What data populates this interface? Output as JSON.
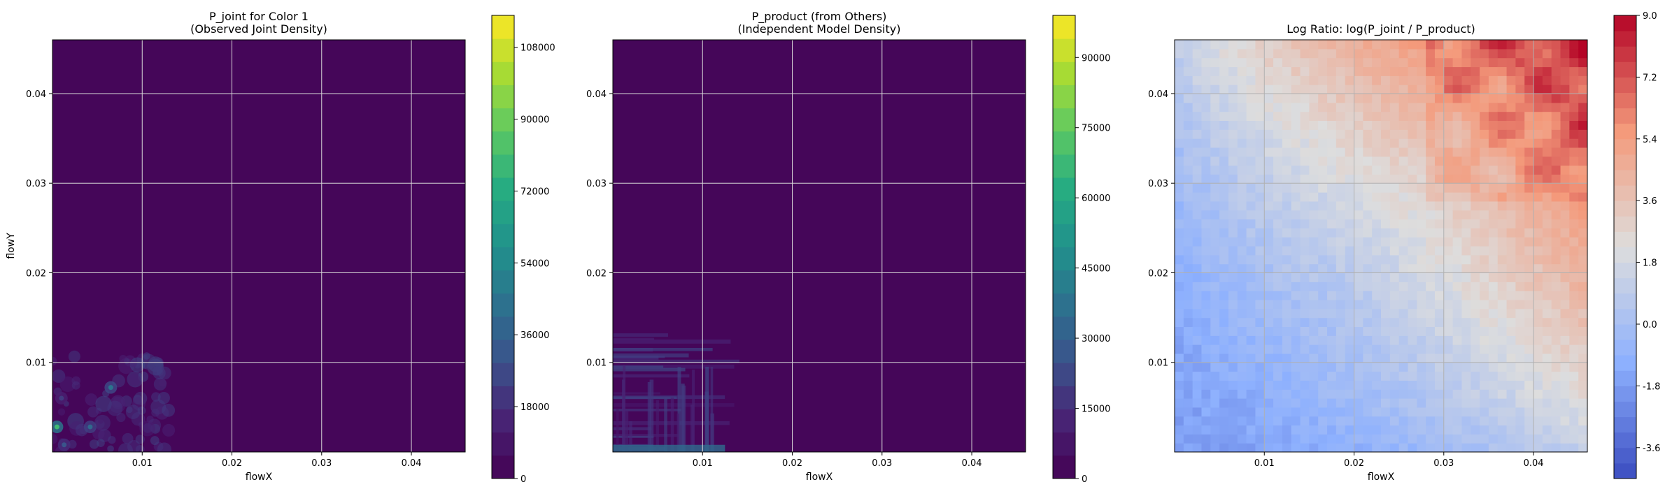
{
  "chart_data": [
    {
      "type": "heatmap",
      "title": "P_joint for Color 1\n(Observed Joint Density)",
      "xlabel": "flowX",
      "ylabel": "flowY",
      "xlim": [
        0.0,
        0.046
      ],
      "ylim": [
        0.0,
        0.046
      ],
      "x_ticks": [
        0.01,
        0.02,
        0.03,
        0.04
      ],
      "y_ticks": [
        0.01,
        0.02,
        0.03,
        0.04
      ],
      "grid": true,
      "colormap": "viridis",
      "colorbar": {
        "range": [
          0,
          116000
        ],
        "ticks": [
          0,
          18000,
          36000,
          54000,
          72000,
          90000,
          108000
        ]
      },
      "highlights": [
        {
          "x": 0.0005,
          "y": 0.0028,
          "value": 80000
        },
        {
          "x": 0.0065,
          "y": 0.0072,
          "value": 45000
        },
        {
          "x": 0.0042,
          "y": 0.0028,
          "value": 40000
        },
        {
          "x": 0.0013,
          "y": 0.0008,
          "value": 30000
        },
        {
          "x": 0.001,
          "y": 0.006,
          "value": 22000
        }
      ]
    },
    {
      "type": "heatmap",
      "title": "P_product (from Others)\n(Independent Model Density)",
      "xlabel": "flowX",
      "ylabel": "",
      "xlim": [
        0.0,
        0.046
      ],
      "ylim": [
        0.0,
        0.046
      ],
      "x_ticks": [
        0.01,
        0.02,
        0.03,
        0.04
      ],
      "y_ticks": [
        0.01,
        0.02,
        0.03,
        0.04
      ],
      "grid": true,
      "colormap": "viridis",
      "colorbar": {
        "range": [
          0,
          99000
        ],
        "ticks": [
          0,
          15000,
          30000,
          45000,
          60000,
          75000,
          90000
        ]
      },
      "nonzero_region": {
        "x_max": 0.0145,
        "y_max": 0.0155
      }
    },
    {
      "type": "heatmap",
      "title": "Log Ratio: log(P_joint / P_product)",
      "xlabel": "flowX",
      "ylabel": "",
      "xlim": [
        0.0,
        0.046
      ],
      "ylim": [
        0.0,
        0.046
      ],
      "x_ticks": [
        0.01,
        0.02,
        0.03,
        0.04
      ],
      "y_ticks": [
        0.01,
        0.02,
        0.03,
        0.04
      ],
      "grid": true,
      "colormap": "coolwarm",
      "colorbar": {
        "range": [
          -4.5,
          9.0
        ],
        "ticks": [
          -3.6,
          -1.8,
          0.0,
          1.8,
          3.6,
          5.4,
          7.2,
          9.0
        ]
      },
      "trend": "log ratio increases from about -1 near the origin to about 9 at the top-right corner"
    }
  ]
}
